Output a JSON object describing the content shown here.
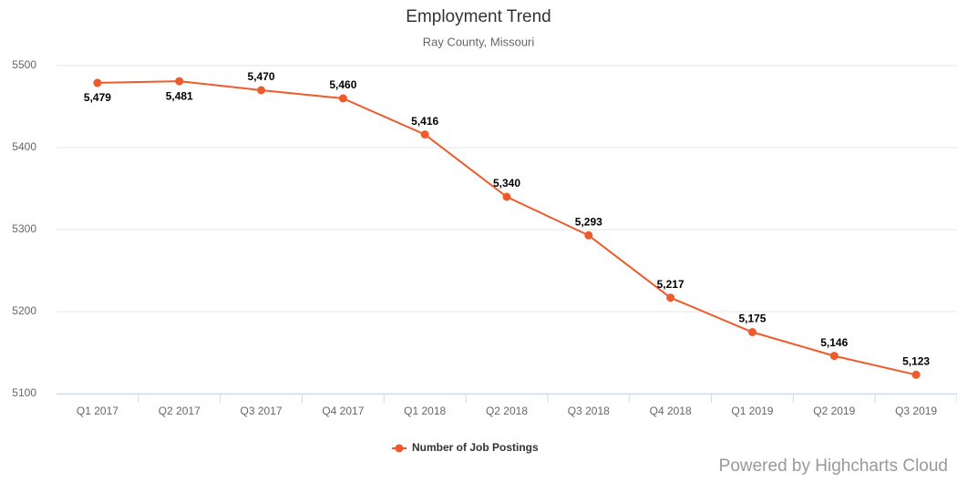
{
  "chart_data": {
    "type": "line",
    "title": "Employment Trend",
    "subtitle": "Ray County, Missouri",
    "categories": [
      "Q1 2017",
      "Q2 2017",
      "Q3 2017",
      "Q4 2017",
      "Q1 2018",
      "Q2 2018",
      "Q3 2018",
      "Q4 2018",
      "Q1 2019",
      "Q2 2019",
      "Q3 2019"
    ],
    "series": [
      {
        "name": "Number of Job Postings",
        "color": "#ee5a2b",
        "values": [
          5479,
          5481,
          5470,
          5460,
          5416,
          5340,
          5293,
          5217,
          5175,
          5146,
          5123
        ],
        "value_labels": [
          "5,479",
          "5,481",
          "5,470",
          "5,460",
          "5,416",
          "5,340",
          "5,293",
          "5,217",
          "5,175",
          "5,146",
          "5,123"
        ]
      }
    ],
    "ylim": [
      5100,
      5500
    ],
    "yticks": [
      5100,
      5200,
      5300,
      5400,
      5500
    ],
    "grid": true,
    "legend": "bottom",
    "credits": "Powered by Highcharts Cloud"
  }
}
